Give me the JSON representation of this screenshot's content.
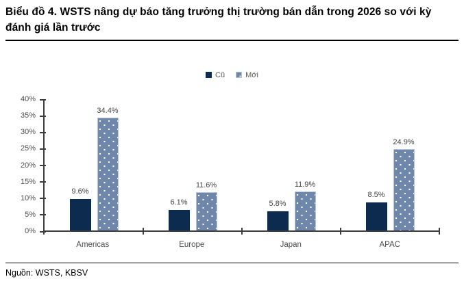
{
  "title": "Biểu đồ 4. WSTS nâng dự báo tăng trưởng thị trường bán dẫn trong 2026 so với kỳ đánh giá lần trước",
  "source": "Nguồn: WSTS, KBSV",
  "colors": {
    "bar_old": "#0d2b4e",
    "bar_new": "#6e87aa",
    "bar_new_border": "#b9c4d4",
    "axis": "#3c3c3c",
    "value_label": "#3f3f3f",
    "tick_label": "#4d4d4d",
    "legend_text": "#595959",
    "rule": "#000000"
  },
  "chart_data": {
    "type": "bar",
    "title": "Biểu đồ 4. WSTS nâng dự báo tăng trưởng thị trường bán dẫn trong 2026 so với kỳ đánh giá lần trước",
    "categories": [
      "Americas",
      "Europe",
      "Japan",
      "APAC"
    ],
    "series": [
      {
        "name": "Cũ",
        "values": [
          9.6,
          6.1,
          5.8,
          8.5
        ]
      },
      {
        "name": "Mới",
        "values": [
          34.4,
          11.6,
          11.9,
          24.9
        ]
      }
    ],
    "value_labels": [
      [
        "9.6%",
        "6.1%",
        "5.8%",
        "8.5%"
      ],
      [
        "34.4%",
        "11.6%",
        "11.9%",
        "24.9%"
      ]
    ],
    "xlabel": "",
    "ylabel": "",
    "ylim": [
      0,
      40
    ],
    "ytick_labels": [
      "0%",
      "5%",
      "10%",
      "15%",
      "20%",
      "25%",
      "30%",
      "35%",
      "40%"
    ],
    "grid": false,
    "legend_position": "top-center"
  }
}
